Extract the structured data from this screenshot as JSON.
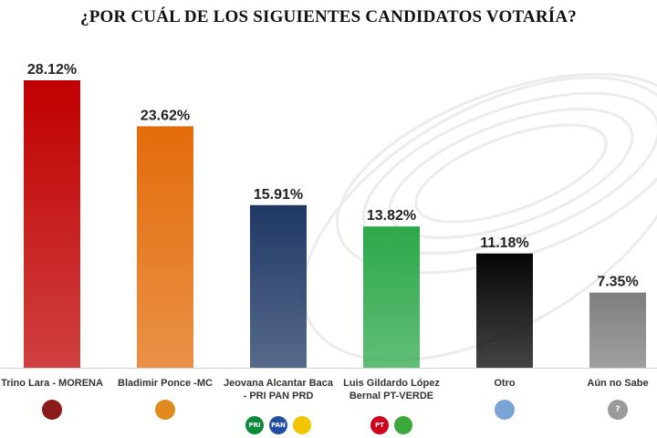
{
  "chart_data": {
    "type": "bar",
    "title": "¿POR CUÁL DE LOS SIGUIENTES CANDIDATOS VOTARÍA?",
    "categories": [
      "Trino Lara - MORENA",
      "Bladimir Ponce -MC",
      "Jeovana Alcantar Baca\n- PRI PAN PRD",
      "Luis Gildardo López\nBernal PT-VERDE",
      "Otro",
      "Aún no Sabe"
    ],
    "values": [
      28.12,
      23.62,
      15.91,
      13.82,
      11.18,
      7.35
    ],
    "value_labels": [
      "28.12%",
      "23.62%",
      "15.91%",
      "13.82%",
      "11.18%",
      "7.35%"
    ],
    "bar_colors": [
      "#c00000",
      "#e36c0a",
      "#1f3864",
      "#2ca84a",
      "#050505",
      "#7f7f7f"
    ],
    "ylim": [
      0,
      30
    ],
    "xlabel": "",
    "ylabel": "",
    "grid": false
  },
  "party_logos": [
    [
      {
        "icon": "morena-logo-icon",
        "text": "",
        "color": "#8b1a1a"
      }
    ],
    [
      {
        "icon": "mc-eagle-logo-icon",
        "text": "",
        "color": "#e08a1e"
      }
    ],
    [
      {
        "icon": "pri-logo-icon",
        "text": "PRI",
        "color": "#0a8a3a"
      },
      {
        "icon": "pan-logo-icon",
        "text": "PAN",
        "color": "#1f4ea3"
      },
      {
        "icon": "prd-logo-icon",
        "text": "",
        "color": "#f2c500"
      }
    ],
    [
      {
        "icon": "pt-logo-icon",
        "text": "PT",
        "color": "#d0021b"
      },
      {
        "icon": "verde-logo-icon",
        "text": "",
        "color": "#3aa83a"
      }
    ],
    [
      {
        "icon": "user-icon",
        "text": "",
        "color": "#7aa3d6"
      }
    ],
    [
      {
        "icon": "question-icon",
        "text": "?",
        "color": "#9a9a9a"
      }
    ]
  ]
}
